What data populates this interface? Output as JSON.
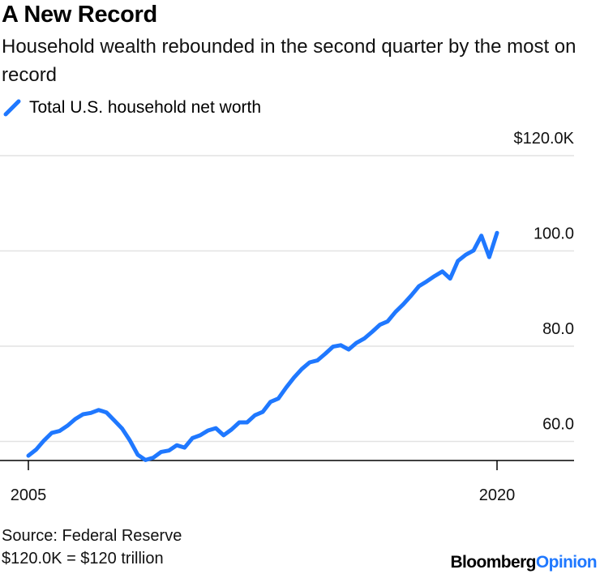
{
  "title": "A New Record",
  "subtitle": "Household wealth rebounded in the second quarter by the most on record",
  "legend": {
    "label": "Total U.S. household net worth",
    "color": "#1F78FF"
  },
  "footer": {
    "source": "Source: Federal Reserve",
    "note": "$120.0K = $120 trillion"
  },
  "brand": {
    "part1": "Bloomberg",
    "part2": "Opinion"
  },
  "chart_data": {
    "type": "line",
    "title": "A New Record",
    "xlabel": "",
    "ylabel": "",
    "xlim": [
      2005,
      2022.4
    ],
    "ylim": [
      56.0,
      120.0
    ],
    "x_ticks": [
      {
        "value": 2005,
        "label": "2005"
      },
      {
        "value": 2020,
        "label": "2020"
      }
    ],
    "y_ticks": [
      {
        "value": 120,
        "label": "$120.0K"
      },
      {
        "value": 100,
        "label": "100.0"
      },
      {
        "value": 80,
        "label": "80.0"
      },
      {
        "value": 60,
        "label": "60.0"
      }
    ],
    "series": [
      {
        "name": "Total U.S. household net worth",
        "color": "#1F78FF",
        "x": [
          2005.0,
          2005.25,
          2005.5,
          2005.75,
          2006.0,
          2006.25,
          2006.5,
          2006.75,
          2007.0,
          2007.25,
          2007.5,
          2007.75,
          2008.0,
          2008.25,
          2008.5,
          2008.75,
          2009.0,
          2009.25,
          2009.5,
          2009.75,
          2010.0,
          2010.25,
          2010.5,
          2010.75,
          2011.0,
          2011.25,
          2011.5,
          2011.75,
          2012.0,
          2012.25,
          2012.5,
          2012.75,
          2013.0,
          2013.25,
          2013.5,
          2013.75,
          2014.0,
          2014.25,
          2014.5,
          2014.75,
          2015.0,
          2015.25,
          2015.5,
          2015.75,
          2016.0,
          2016.25,
          2016.5,
          2016.75,
          2017.0,
          2017.25,
          2017.5,
          2017.75,
          2018.0,
          2018.25,
          2018.5,
          2018.75,
          2019.0,
          2019.25,
          2019.5,
          2019.75,
          2020.0
        ],
        "values": [
          57.0,
          58.3,
          60.2,
          61.8,
          62.2,
          63.3,
          64.7,
          65.7,
          66.0,
          66.6,
          66.1,
          64.4,
          62.7,
          60.2,
          57.2,
          56.1,
          56.6,
          57.8,
          58.1,
          59.2,
          58.7,
          60.7,
          61.3,
          62.3,
          62.8,
          61.3,
          62.5,
          64.0,
          64.0,
          65.5,
          66.2,
          68.3,
          69.0,
          71.3,
          73.4,
          75.2,
          76.6,
          77.0,
          78.4,
          79.9,
          80.2,
          79.3,
          80.7,
          81.6,
          83.0,
          84.5,
          85.2,
          87.2,
          88.8,
          90.6,
          92.6,
          93.6,
          94.7,
          95.7,
          94.2,
          97.9,
          99.2,
          100.1,
          103.2,
          98.7,
          103.8
        ]
      }
    ]
  }
}
